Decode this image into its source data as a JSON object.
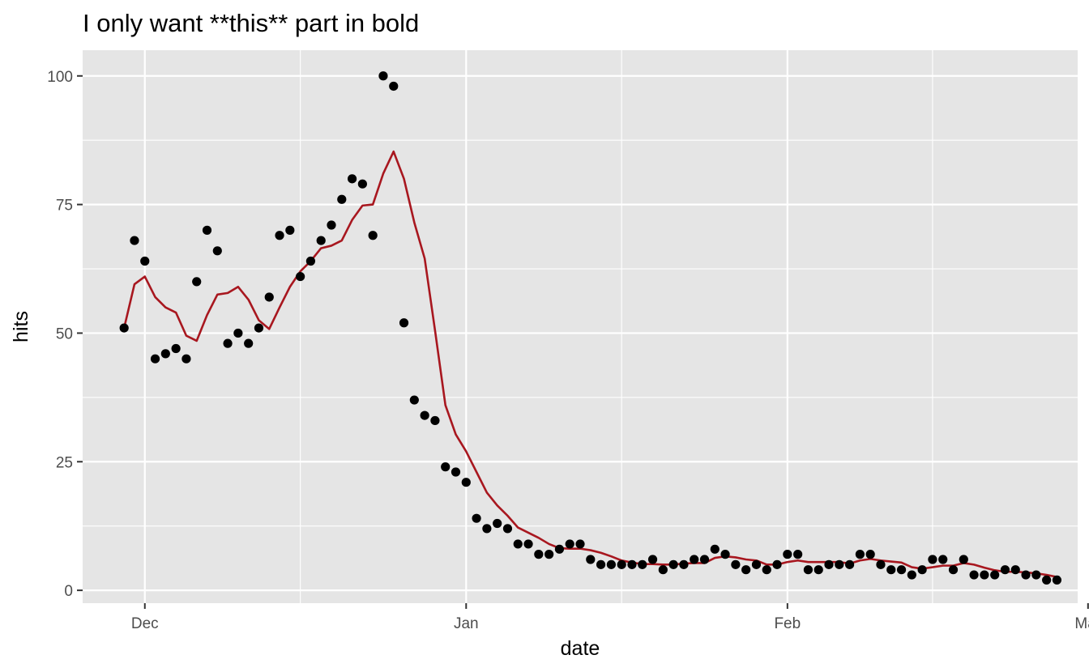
{
  "chart_data": {
    "type": "line",
    "title": "I only want **this** part in bold",
    "xlabel": "date",
    "ylabel": "hits",
    "xlim": [
      "2019-11-25",
      "2020-02-29"
    ],
    "ylim": [
      -2.5,
      105
    ],
    "x_ticks": [
      {
        "value": "2019-12-01",
        "label": "Dec"
      },
      {
        "value": "2020-01-01",
        "label": "Jan"
      },
      {
        "value": "2020-02-01",
        "label": "Feb"
      },
      {
        "value": "2020-03-01",
        "label": "Mar"
      }
    ],
    "y_ticks": [
      0,
      25,
      50,
      75,
      100
    ],
    "panel_background": "#e5e5e5",
    "grid": true,
    "legend": "none",
    "series": [
      {
        "kind": "points",
        "color": "#000000",
        "points": [
          [
            "2019-11-29",
            51
          ],
          [
            "2019-11-30",
            68
          ],
          [
            "2019-12-01",
            64
          ],
          [
            "2019-12-02",
            45
          ],
          [
            "2019-12-03",
            46
          ],
          [
            "2019-12-04",
            47
          ],
          [
            "2019-12-05",
            45
          ],
          [
            "2019-12-06",
            60
          ],
          [
            "2019-12-07",
            70
          ],
          [
            "2019-12-08",
            66
          ],
          [
            "2019-12-09",
            48
          ],
          [
            "2019-12-10",
            50
          ],
          [
            "2019-12-11",
            48
          ],
          [
            "2019-12-12",
            51
          ],
          [
            "2019-12-13",
            57
          ],
          [
            "2019-12-14",
            69
          ],
          [
            "2019-12-15",
            70
          ],
          [
            "2019-12-16",
            61
          ],
          [
            "2019-12-17",
            64
          ],
          [
            "2019-12-18",
            68
          ],
          [
            "2019-12-19",
            71
          ],
          [
            "2019-12-20",
            76
          ],
          [
            "2019-12-21",
            80
          ],
          [
            "2019-12-22",
            79
          ],
          [
            "2019-12-23",
            69
          ],
          [
            "2019-12-24",
            100
          ],
          [
            "2019-12-25",
            98
          ],
          [
            "2019-12-26",
            52
          ],
          [
            "2019-12-27",
            37
          ],
          [
            "2019-12-28",
            34
          ],
          [
            "2019-12-29",
            33
          ],
          [
            "2019-12-30",
            24
          ],
          [
            "2019-12-31",
            23
          ],
          [
            "2020-01-01",
            21
          ],
          [
            "2020-01-02",
            14
          ],
          [
            "2020-01-03",
            12
          ],
          [
            "2020-01-04",
            13
          ],
          [
            "2020-01-05",
            12
          ],
          [
            "2020-01-06",
            9
          ],
          [
            "2020-01-07",
            9
          ],
          [
            "2020-01-08",
            7
          ],
          [
            "2020-01-09",
            7
          ],
          [
            "2020-01-10",
            8
          ],
          [
            "2020-01-11",
            9
          ],
          [
            "2020-01-12",
            9
          ],
          [
            "2020-01-13",
            6
          ],
          [
            "2020-01-14",
            5
          ],
          [
            "2020-01-15",
            5
          ],
          [
            "2020-01-16",
            5
          ],
          [
            "2020-01-17",
            5
          ],
          [
            "2020-01-18",
            5
          ],
          [
            "2020-01-19",
            6
          ],
          [
            "2020-01-20",
            4
          ],
          [
            "2020-01-21",
            5
          ],
          [
            "2020-01-22",
            5
          ],
          [
            "2020-01-23",
            6
          ],
          [
            "2020-01-24",
            6
          ],
          [
            "2020-01-25",
            8
          ],
          [
            "2020-01-26",
            7
          ],
          [
            "2020-01-27",
            5
          ],
          [
            "2020-01-28",
            4
          ],
          [
            "2020-01-29",
            5
          ],
          [
            "2020-01-30",
            4
          ],
          [
            "2020-01-31",
            5
          ],
          [
            "2020-02-01",
            7
          ],
          [
            "2020-02-02",
            7
          ],
          [
            "2020-02-03",
            4
          ],
          [
            "2020-02-04",
            4
          ],
          [
            "2020-02-05",
            5
          ],
          [
            "2020-02-06",
            5
          ],
          [
            "2020-02-07",
            5
          ],
          [
            "2020-02-08",
            7
          ],
          [
            "2020-02-09",
            7
          ],
          [
            "2020-02-10",
            5
          ],
          [
            "2020-02-11",
            4
          ],
          [
            "2020-02-12",
            4
          ],
          [
            "2020-02-13",
            3
          ],
          [
            "2020-02-14",
            4
          ],
          [
            "2020-02-15",
            6
          ],
          [
            "2020-02-16",
            6
          ],
          [
            "2020-02-17",
            4
          ],
          [
            "2020-02-18",
            6
          ],
          [
            "2020-02-19",
            3
          ],
          [
            "2020-02-20",
            3
          ],
          [
            "2020-02-21",
            3
          ],
          [
            "2020-02-22",
            4
          ],
          [
            "2020-02-23",
            4
          ],
          [
            "2020-02-24",
            3
          ],
          [
            "2020-02-25",
            3
          ],
          [
            "2020-02-26",
            2
          ],
          [
            "2020-02-27",
            2
          ]
        ]
      },
      {
        "kind": "line",
        "color": "#a8171f",
        "points": [
          [
            "2019-11-29",
            51
          ],
          [
            "2019-11-30",
            59.5
          ],
          [
            "2019-12-01",
            61
          ],
          [
            "2019-12-02",
            57
          ],
          [
            "2019-12-03",
            55
          ],
          [
            "2019-12-04",
            54
          ],
          [
            "2019-12-05",
            49.5
          ],
          [
            "2019-12-06",
            48.5
          ],
          [
            "2019-12-07",
            53.5
          ],
          [
            "2019-12-08",
            57.5
          ],
          [
            "2019-12-09",
            57.8
          ],
          [
            "2019-12-10",
            59
          ],
          [
            "2019-12-11",
            56.5
          ],
          [
            "2019-12-12",
            52.5
          ],
          [
            "2019-12-13",
            50.8
          ],
          [
            "2019-12-14",
            55
          ],
          [
            "2019-12-15",
            59
          ],
          [
            "2019-12-16",
            62
          ],
          [
            "2019-12-17",
            64
          ],
          [
            "2019-12-18",
            66.5
          ],
          [
            "2019-12-19",
            67
          ],
          [
            "2019-12-20",
            68
          ],
          [
            "2019-12-21",
            72
          ],
          [
            "2019-12-22",
            74.8
          ],
          [
            "2019-12-23",
            75
          ],
          [
            "2019-12-24",
            81
          ],
          [
            "2019-12-25",
            85.3
          ],
          [
            "2019-12-26",
            80
          ],
          [
            "2019-12-27",
            71.5
          ],
          [
            "2019-12-28",
            64.5
          ],
          [
            "2019-12-29",
            50.5
          ],
          [
            "2019-12-30",
            36
          ],
          [
            "2019-12-31",
            30.3
          ],
          [
            "2020-01-01",
            27
          ],
          [
            "2020-01-02",
            23
          ],
          [
            "2020-01-03",
            19
          ],
          [
            "2020-01-04",
            16.5
          ],
          [
            "2020-01-05",
            14.5
          ],
          [
            "2020-01-06",
            12.2
          ],
          [
            "2020-01-07",
            11.2
          ],
          [
            "2020-01-08",
            10.2
          ],
          [
            "2020-01-09",
            9
          ],
          [
            "2020-01-10",
            8.2
          ],
          [
            "2020-01-11",
            8.1
          ],
          [
            "2020-01-12",
            8.1
          ],
          [
            "2020-01-13",
            7.8
          ],
          [
            "2020-01-14",
            7.3
          ],
          [
            "2020-01-15",
            6.6
          ],
          [
            "2020-01-16",
            5.8
          ],
          [
            "2020-01-17",
            5.4
          ],
          [
            "2020-01-18",
            5.1
          ],
          [
            "2020-01-19",
            5.1
          ],
          [
            "2020-01-20",
            5
          ],
          [
            "2020-01-21",
            5
          ],
          [
            "2020-01-22",
            5.2
          ],
          [
            "2020-01-23",
            5.3
          ],
          [
            "2020-01-24",
            5.3
          ],
          [
            "2020-01-25",
            6.3
          ],
          [
            "2020-01-26",
            6.6
          ],
          [
            "2020-01-27",
            6.4
          ],
          [
            "2020-01-28",
            6
          ],
          [
            "2020-01-29",
            5.8
          ],
          [
            "2020-01-30",
            5
          ],
          [
            "2020-01-31",
            5
          ],
          [
            "2020-02-01",
            5.5
          ],
          [
            "2020-02-02",
            5.8
          ],
          [
            "2020-02-03",
            5.5
          ],
          [
            "2020-02-04",
            5.5
          ],
          [
            "2020-02-05",
            5.5
          ],
          [
            "2020-02-06",
            5.5
          ],
          [
            "2020-02-07",
            5.2
          ],
          [
            "2020-02-08",
            5.8
          ],
          [
            "2020-02-09",
            6.1
          ],
          [
            "2020-02-10",
            5.8
          ],
          [
            "2020-02-11",
            5.6
          ],
          [
            "2020-02-12",
            5.4
          ],
          [
            "2020-02-13",
            4.5
          ],
          [
            "2020-02-14",
            4.2
          ],
          [
            "2020-02-15",
            4.5
          ],
          [
            "2020-02-16",
            4.8
          ],
          [
            "2020-02-17",
            4.8
          ],
          [
            "2020-02-18",
            5.3
          ],
          [
            "2020-02-19",
            5
          ],
          [
            "2020-02-20",
            4.4
          ],
          [
            "2020-02-21",
            3.9
          ],
          [
            "2020-02-22",
            3.6
          ],
          [
            "2020-02-23",
            3.6
          ],
          [
            "2020-02-24",
            3.5
          ],
          [
            "2020-02-25",
            3.3
          ],
          [
            "2020-02-26",
            3
          ],
          [
            "2020-02-27",
            2.6
          ]
        ]
      }
    ]
  }
}
